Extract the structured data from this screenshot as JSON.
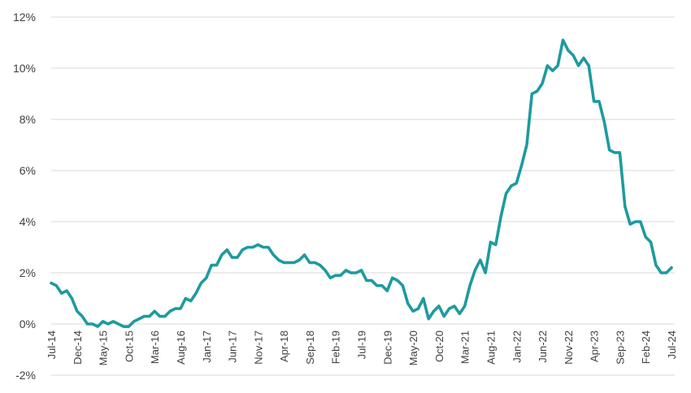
{
  "chart_data": {
    "type": "line",
    "title": "",
    "xlabel": "",
    "ylabel": "",
    "ylim": [
      -2,
      12
    ],
    "y_ticks": [
      -2,
      0,
      2,
      4,
      6,
      8,
      10,
      12
    ],
    "y_tick_labels": [
      "-2%",
      "0%",
      "2%",
      "4%",
      "6%",
      "8%",
      "10%",
      "12%"
    ],
    "x_tick_labels": [
      "Jul-14",
      "Dec-14",
      "May-15",
      "Oct-15",
      "Mar-16",
      "Aug-16",
      "Jan-17",
      "Jun-17",
      "Nov-17",
      "Apr-18",
      "Sep-18",
      "Feb-19",
      "Jul-19",
      "Dec-19",
      "May-20",
      "Oct-20",
      "Mar-21",
      "Aug-21",
      "Jan-22",
      "Jun-22",
      "Nov-22",
      "Apr-23",
      "Sep-23",
      "Feb-24",
      "Jul-24"
    ],
    "x_tick_every_months": 5,
    "start_month": "Jul-14",
    "grid": true,
    "legend": "none",
    "series": [
      {
        "color": "#1e9aa0",
        "values": [
          1.6,
          1.5,
          1.2,
          1.3,
          1.0,
          0.5,
          0.3,
          0.0,
          0.0,
          -0.1,
          0.1,
          0.0,
          0.1,
          0.0,
          -0.1,
          -0.1,
          0.1,
          0.2,
          0.3,
          0.3,
          0.5,
          0.3,
          0.3,
          0.5,
          0.6,
          0.6,
          1.0,
          0.9,
          1.2,
          1.6,
          1.8,
          2.3,
          2.3,
          2.7,
          2.9,
          2.6,
          2.6,
          2.9,
          3.0,
          3.0,
          3.1,
          3.0,
          3.0,
          2.7,
          2.5,
          2.4,
          2.4,
          2.4,
          2.5,
          2.7,
          2.4,
          2.4,
          2.3,
          2.1,
          1.8,
          1.9,
          1.9,
          2.1,
          2.0,
          2.0,
          2.1,
          1.7,
          1.7,
          1.5,
          1.5,
          1.3,
          1.8,
          1.7,
          1.5,
          0.8,
          0.5,
          0.6,
          1.0,
          0.2,
          0.5,
          0.7,
          0.3,
          0.6,
          0.7,
          0.4,
          0.7,
          1.5,
          2.1,
          2.5,
          2.0,
          3.2,
          3.1,
          4.2,
          5.1,
          5.4,
          5.5,
          6.2,
          7.0,
          9.0,
          9.1,
          9.4,
          10.1,
          9.9,
          10.1,
          11.1,
          10.7,
          10.5,
          10.1,
          10.4,
          10.1,
          8.7,
          8.7,
          7.9,
          6.8,
          6.7,
          6.7,
          4.6,
          3.9,
          4.0,
          4.0,
          3.4,
          3.2,
          2.3,
          2.0,
          2.0,
          2.2
        ]
      }
    ]
  }
}
